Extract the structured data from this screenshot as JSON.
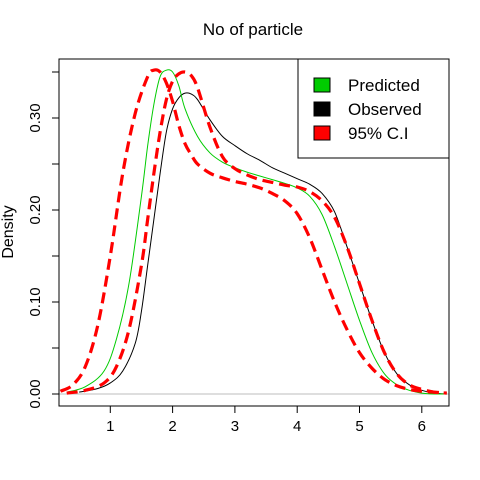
{
  "chart_data": {
    "type": "line",
    "title": "No of particle",
    "xlabel": "",
    "ylabel": "Density",
    "xlim": [
      0.2,
      6.4
    ],
    "ylim": [
      0,
      0.36
    ],
    "x_ticks": [
      1,
      2,
      3,
      4,
      5,
      6
    ],
    "x_tick_labels": [
      "1",
      "2",
      "3",
      "4",
      "5",
      "6"
    ],
    "y_ticks": [
      0.0,
      0.05,
      0.1,
      0.15,
      0.2,
      0.25,
      0.3,
      0.35
    ],
    "y_tick_labels": [
      "0.00",
      "",
      "0.10",
      "",
      "0.20",
      "",
      "0.30",
      ""
    ],
    "zero_line": true,
    "grid": false,
    "legend_position": "top-right",
    "legend": [
      {
        "label": "Predicted",
        "color": "#00cc00"
      },
      {
        "label": "Observed",
        "color": "#000000"
      },
      {
        "label": "95% C.I",
        "color": "#ff0000"
      }
    ],
    "series": [
      {
        "name": "Observed",
        "color": "#000000",
        "style": "solid",
        "x": [
          0.5,
          0.8,
          1.0,
          1.2,
          1.4,
          1.5,
          1.6,
          1.7,
          1.8,
          1.9,
          2.0,
          2.1,
          2.2,
          2.3,
          2.4,
          2.6,
          2.8,
          3.0,
          3.2,
          3.4,
          3.6,
          3.8,
          4.0,
          4.2,
          4.4,
          4.6,
          4.8,
          5.0,
          5.2,
          5.4,
          5.6,
          5.8,
          6.0,
          6.2,
          6.4
        ],
        "y": [
          0.002,
          0.006,
          0.012,
          0.025,
          0.055,
          0.09,
          0.14,
          0.19,
          0.24,
          0.285,
          0.31,
          0.322,
          0.327,
          0.326,
          0.32,
          0.298,
          0.28,
          0.27,
          0.261,
          0.254,
          0.246,
          0.24,
          0.234,
          0.228,
          0.218,
          0.198,
          0.16,
          0.12,
          0.08,
          0.045,
          0.022,
          0.01,
          0.004,
          0.001,
          0.0
        ]
      },
      {
        "name": "Predicted",
        "color": "#00cc00",
        "style": "solid",
        "x": [
          0.3,
          0.6,
          0.9,
          1.1,
          1.3,
          1.5,
          1.6,
          1.7,
          1.8,
          1.9,
          2.0,
          2.1,
          2.2,
          2.4,
          2.6,
          2.8,
          3.0,
          3.2,
          3.4,
          3.6,
          3.8,
          4.0,
          4.2,
          4.4,
          4.6,
          4.8,
          5.0,
          5.2,
          5.4,
          5.6,
          5.8,
          6.0,
          6.2,
          6.4
        ],
        "y": [
          0.002,
          0.008,
          0.025,
          0.06,
          0.12,
          0.215,
          0.27,
          0.315,
          0.345,
          0.352,
          0.35,
          0.335,
          0.31,
          0.28,
          0.262,
          0.252,
          0.246,
          0.241,
          0.237,
          0.233,
          0.229,
          0.224,
          0.215,
          0.195,
          0.16,
          0.12,
          0.08,
          0.045,
          0.022,
          0.01,
          0.004,
          0.001,
          0.0,
          0.0
        ]
      },
      {
        "name": "95% C.I lower",
        "color": "#ff0000",
        "style": "dashed",
        "x": [
          0.2,
          0.4,
          0.6,
          0.8,
          1.0,
          1.2,
          1.4,
          1.6,
          1.7,
          1.8,
          1.9,
          2.0,
          2.1,
          2.2,
          2.3,
          2.4,
          2.6,
          2.8,
          3.0,
          3.2,
          3.4,
          3.6,
          3.8,
          4.0,
          4.2,
          4.4,
          4.6,
          4.8,
          5.0,
          5.2,
          5.4,
          5.6,
          5.8,
          6.0,
          6.2,
          6.4
        ],
        "y": [
          0.003,
          0.01,
          0.03,
          0.075,
          0.15,
          0.24,
          0.305,
          0.345,
          0.352,
          0.35,
          0.338,
          0.318,
          0.292,
          0.272,
          0.26,
          0.25,
          0.24,
          0.235,
          0.231,
          0.228,
          0.224,
          0.218,
          0.21,
          0.196,
          0.17,
          0.135,
          0.1,
          0.07,
          0.045,
          0.028,
          0.016,
          0.009,
          0.005,
          0.003,
          0.002,
          0.001
        ]
      },
      {
        "name": "95% C.I upper",
        "color": "#ff0000",
        "style": "dashed",
        "x": [
          0.3,
          0.6,
          0.9,
          1.1,
          1.3,
          1.5,
          1.6,
          1.7,
          1.8,
          1.9,
          2.0,
          2.1,
          2.2,
          2.3,
          2.4,
          2.6,
          2.8,
          3.0,
          3.2,
          3.4,
          3.6,
          3.8,
          4.0,
          4.2,
          4.4,
          4.6,
          4.8,
          5.0,
          5.2,
          5.4,
          5.6,
          5.8,
          6.0,
          6.2,
          6.4
        ],
        "y": [
          0.001,
          0.004,
          0.012,
          0.03,
          0.07,
          0.14,
          0.19,
          0.24,
          0.285,
          0.32,
          0.34,
          0.348,
          0.35,
          0.346,
          0.333,
          0.29,
          0.258,
          0.245,
          0.238,
          0.233,
          0.23,
          0.227,
          0.225,
          0.22,
          0.21,
          0.192,
          0.16,
          0.12,
          0.08,
          0.045,
          0.022,
          0.01,
          0.005,
          0.002,
          0.001
        ]
      }
    ]
  }
}
